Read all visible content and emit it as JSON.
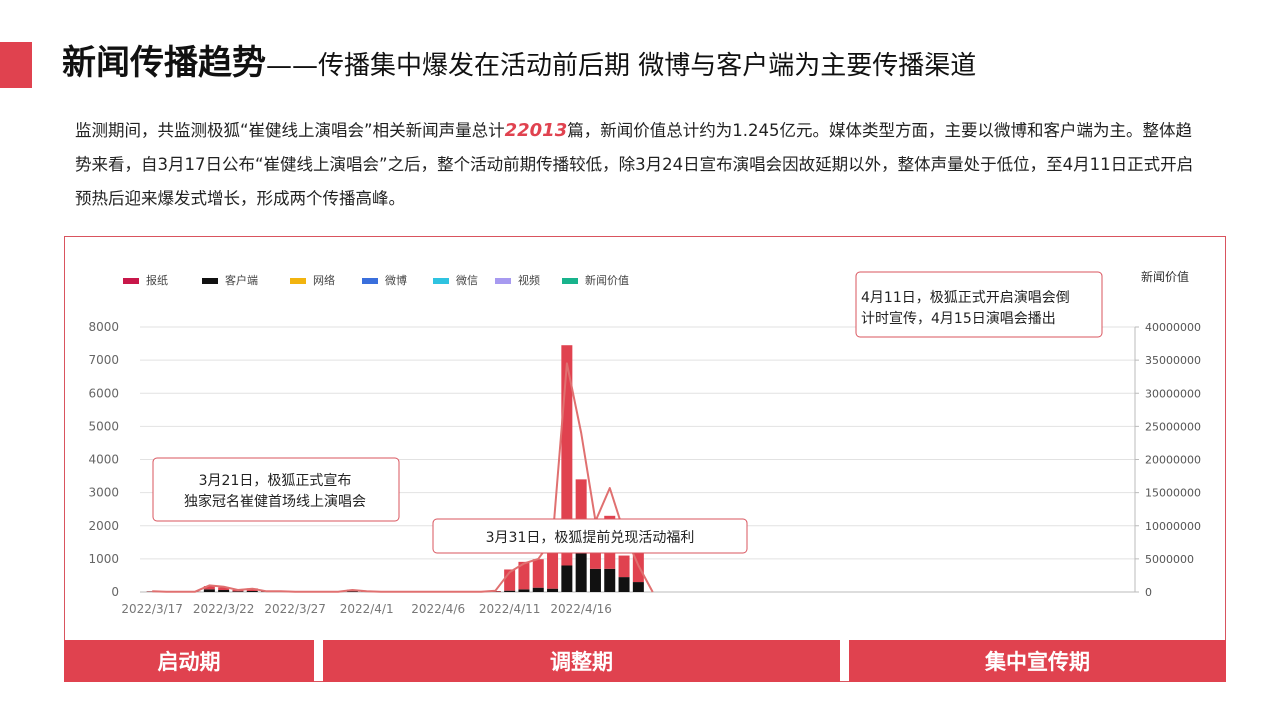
{
  "header": {
    "title_main": "新闻传播趋势",
    "title_sub": "——传播集中爆发在活动前后期  微博与客户端为主要传播渠道"
  },
  "summary": {
    "part1": "监测期间，共监测极狐“崔健线上演唱会”相关新闻声量总计",
    "highlight": "22013",
    "part2": "篇，新闻价值总计约为1.245亿元。媒体类型方面，主要以微博和客户端为主。整体趋势来看，自3月17日公布“崔健线上演唱会”之后，整个活动前期传播较低，除3月24日宣布演唱会因故延期以外，整体声量处于低位，至4月11日正式开启预热后迎来爆发式增长，形成两个传播高峰。"
  },
  "colors": {
    "accent": "#e0424f",
    "报纸": "#c8174a",
    "客户端": "#111111",
    "网络": "#f2b40f",
    "微博": "#3a6fdc",
    "微信": "#2fc3e0",
    "视频": "#a79af0",
    "新闻价值": "#18b38c",
    "bar_main": "#e0424f",
    "line": "#e07070"
  },
  "chart_data": {
    "type": "bar",
    "stacked": true,
    "legend": [
      "报纸",
      "客户端",
      "网络",
      "微博",
      "微信",
      "视频",
      "新闻价值"
    ],
    "legend_position": "top-left",
    "y2label": "新闻价值",
    "ylim": [
      0,
      8000
    ],
    "y2lim": [
      0,
      40000000
    ],
    "yticks": [
      "0",
      "1000",
      "2000",
      "3000",
      "4000",
      "5000",
      "6000",
      "7000",
      "8000"
    ],
    "y2ticks": [
      "0",
      "5000000",
      "10000000",
      "15000000",
      "20000000",
      "25000000",
      "30000000",
      "35000000",
      "40000000"
    ],
    "xtick_labels": [
      "2022/3/17",
      "2022/3/22",
      "2022/3/27",
      "2022/4/1",
      "2022/4/6",
      "2022/4/11",
      "2022/4/16"
    ],
    "grid": true,
    "categories": [
      "3/17",
      "3/18",
      "3/19",
      "3/20",
      "3/21",
      "3/22",
      "3/23",
      "3/24",
      "3/25",
      "3/26",
      "3/27",
      "3/28",
      "3/29",
      "3/30",
      "3/31",
      "4/1",
      "4/2",
      "4/3",
      "4/4",
      "4/5",
      "4/6",
      "4/7",
      "4/8",
      "4/9",
      "4/10",
      "4/11",
      "4/12",
      "4/13",
      "4/14",
      "4/15",
      "4/16",
      "4/17",
      "4/18",
      "4/19",
      "4/20",
      "4/21"
    ],
    "series": [
      {
        "name": "客户端",
        "values": [
          10,
          5,
          5,
          5,
          80,
          60,
          20,
          30,
          10,
          10,
          5,
          5,
          5,
          5,
          20,
          5,
          5,
          5,
          5,
          5,
          5,
          5,
          5,
          5,
          10,
          40,
          80,
          130,
          100,
          800,
          1200,
          700,
          700,
          450,
          300,
          0
        ]
      },
      {
        "name": "微博",
        "values": [
          10,
          5,
          5,
          5,
          100,
          80,
          40,
          80,
          20,
          10,
          5,
          5,
          5,
          5,
          50,
          10,
          5,
          5,
          5,
          5,
          5,
          5,
          5,
          5,
          20,
          640,
          830,
          860,
          1600,
          6650,
          2200,
          550,
          1600,
          650,
          1000,
          0
        ]
      },
      {
        "name": "新闻价值",
        "values": [
          100000,
          50000,
          50000,
          50000,
          1000000,
          800000,
          300000,
          500000,
          100000,
          100000,
          50000,
          50000,
          50000,
          50000,
          300000,
          100000,
          50000,
          50000,
          50000,
          50000,
          50000,
          50000,
          50000,
          50000,
          200000,
          3000000,
          4300000,
          5000000,
          8000000,
          34500000,
          24000000,
          10700000,
          15700000,
          9000000,
          4000000,
          0
        ]
      }
    ],
    "annotations": [
      "3月21日，极狐正式宣布独家冠名崔健首场线上演唱会",
      "3月31日，极狐提前兑现活动福利",
      "4月11日，极狐正式开启演唱会倒计时宣传，4月15日演唱会播出"
    ]
  },
  "phases": [
    "启动期",
    "调整期",
    "集中宣传期"
  ]
}
